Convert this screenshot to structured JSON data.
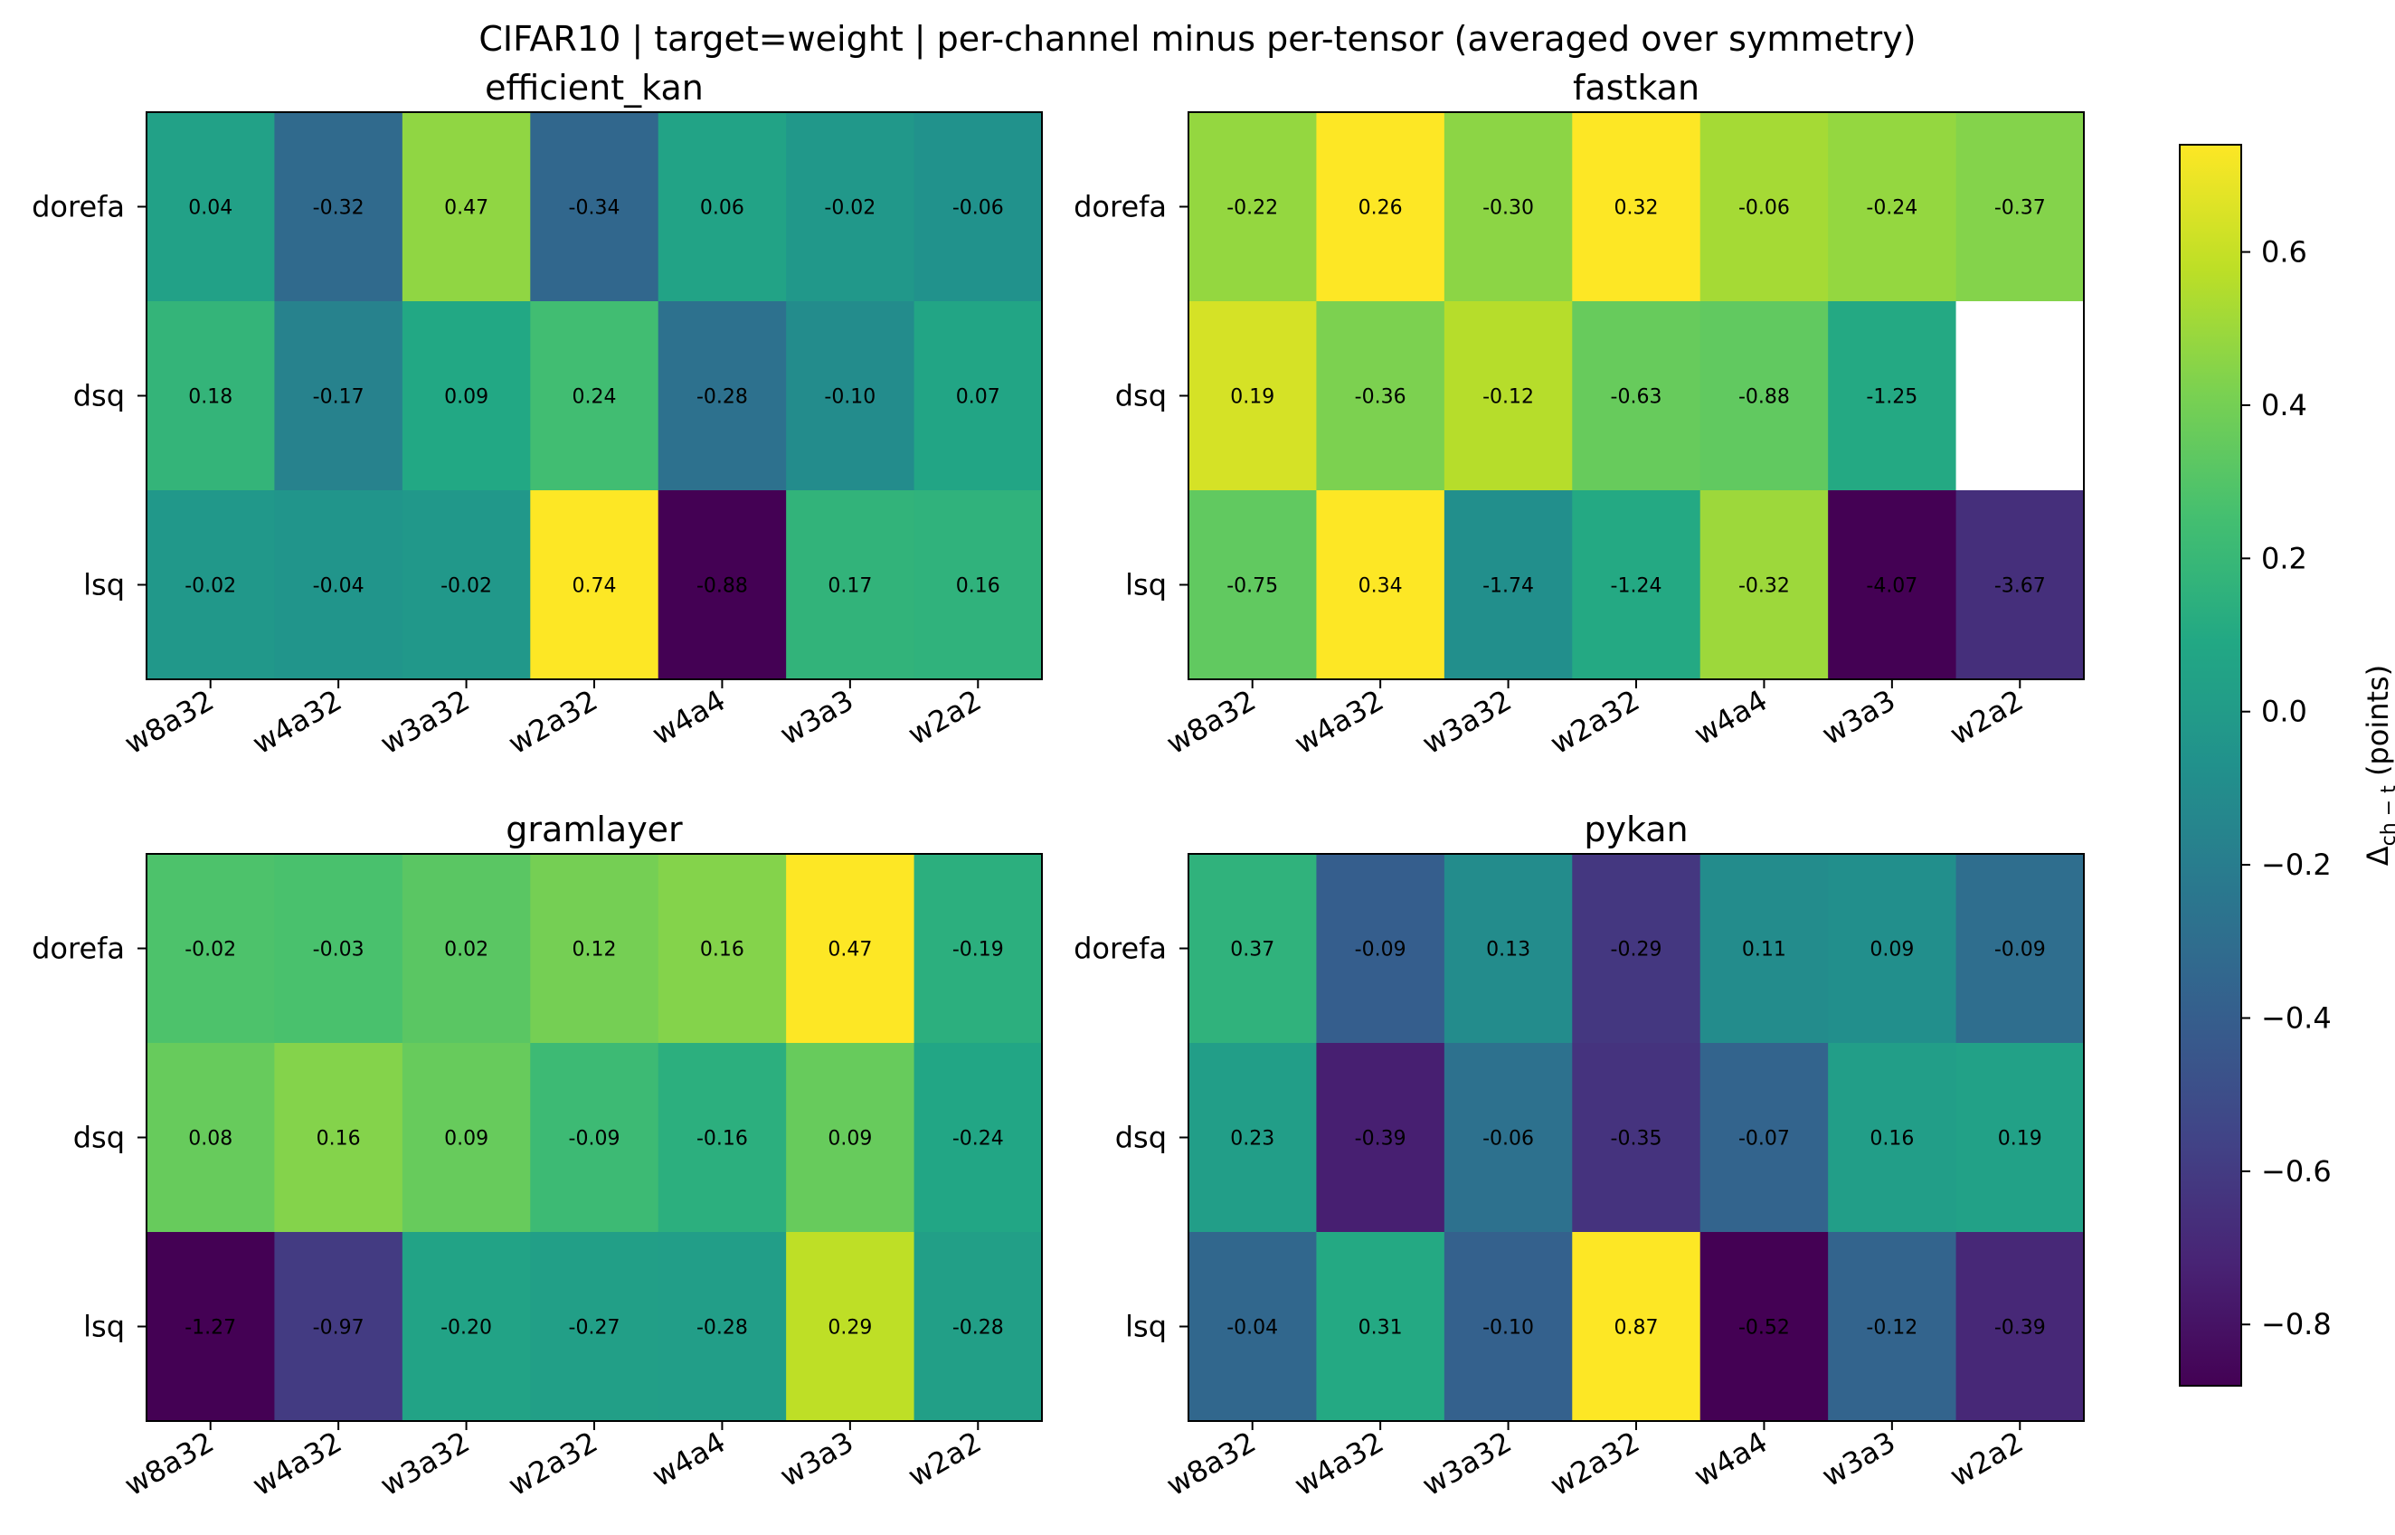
{
  "chart_data": {
    "type": "heatmap",
    "title": "CIFAR10 | target=weight | per-channel minus per-tensor (averaged over symmetry)",
    "colormap": "viridis",
    "colorbar": {
      "label": "Δ_ch−t (points)",
      "label_main": "Δ",
      "label_sub": "ch − t",
      "label_suffix": " (points)",
      "min": -0.88,
      "max": 0.74,
      "ticks": [
        -0.8,
        -0.6,
        -0.4,
        -0.2,
        0.0,
        0.2,
        0.4,
        0.6
      ],
      "tick_labels": [
        "−0.8",
        "−0.6",
        "−0.4",
        "−0.2",
        "0.0",
        "0.2",
        "0.4",
        "0.6"
      ]
    },
    "panels": [
      {
        "name": "efficient_kan",
        "title": "efficient_kan",
        "rows": [
          "dorefa",
          "dsq",
          "lsq"
        ],
        "columns": [
          "w8a32",
          "w4a32",
          "w3a32",
          "w2a32",
          "w4a4",
          "w3a3",
          "w2a2"
        ],
        "values": [
          [
            0.04,
            -0.32,
            0.47,
            -0.34,
            0.06,
            -0.02,
            -0.06
          ],
          [
            0.18,
            -0.17,
            0.09,
            0.24,
            -0.28,
            -0.1,
            0.07
          ],
          [
            -0.02,
            -0.04,
            -0.02,
            0.74,
            -0.88,
            0.17,
            0.16
          ]
        ],
        "labels": [
          [
            "0.04",
            "-0.32",
            "0.47",
            "-0.34",
            "0.06",
            "-0.02",
            "-0.06"
          ],
          [
            "0.18",
            "-0.17",
            "0.09",
            "0.24",
            "-0.28",
            "-0.10",
            "0.07"
          ],
          [
            "-0.02",
            "-0.04",
            "-0.02",
            "0.74",
            "-0.88",
            "0.17",
            "0.16"
          ]
        ]
      },
      {
        "name": "fastkan",
        "title": "fastkan",
        "rows": [
          "dorefa",
          "dsq",
          "lsq"
        ],
        "columns": [
          "w8a32",
          "w4a32",
          "w3a32",
          "w2a32",
          "w4a4",
          "w3a3",
          "w2a2"
        ],
        "values": [
          [
            -0.22,
            0.26,
            -0.3,
            0.32,
            -0.06,
            -0.24,
            -0.37
          ],
          [
            0.19,
            -0.36,
            -0.12,
            -0.63,
            -0.88,
            -1.25,
            null
          ],
          [
            -0.75,
            0.34,
            -1.74,
            -1.24,
            -0.32,
            -4.07,
            -3.67
          ]
        ],
        "labels": [
          [
            "-0.22",
            "0.26",
            "-0.30",
            "0.32",
            "-0.06",
            "-0.24",
            "-0.37"
          ],
          [
            "0.19",
            "-0.36",
            "-0.12",
            "-0.63",
            "-0.88",
            "-1.25",
            ""
          ],
          [
            "-0.75",
            "0.34",
            "-1.74",
            "-1.24",
            "-0.32",
            "-4.07",
            "-3.67"
          ]
        ],
        "approx_color_levels": [
          [
            0.48,
            0.74,
            0.46,
            0.74,
            0.52,
            0.48,
            0.44
          ],
          [
            0.64,
            0.42,
            0.56,
            0.36,
            0.34,
            0.1,
            null
          ],
          [
            0.34,
            0.74,
            -0.08,
            0.1,
            0.5,
            -0.88,
            -0.66
          ]
        ]
      },
      {
        "name": "gramlayer",
        "title": "gramlayer",
        "rows": [
          "dorefa",
          "dsq",
          "lsq"
        ],
        "columns": [
          "w8a32",
          "w4a32",
          "w3a32",
          "w2a32",
          "w4a4",
          "w3a3",
          "w2a2"
        ],
        "values": [
          [
            -0.02,
            -0.03,
            0.02,
            0.12,
            0.16,
            0.47,
            -0.19
          ],
          [
            0.08,
            0.16,
            0.09,
            -0.09,
            -0.16,
            0.09,
            -0.24
          ],
          [
            -1.27,
            -0.97,
            -0.2,
            -0.27,
            -0.28,
            0.29,
            -0.28
          ]
        ],
        "labels": [
          [
            "-0.02",
            "-0.03",
            "0.02",
            "0.12",
            "0.16",
            "0.47",
            "-0.19"
          ],
          [
            "0.08",
            "0.16",
            "0.09",
            "-0.09",
            "-0.16",
            "0.09",
            "-0.24"
          ],
          [
            "-1.27",
            "-0.97",
            "-0.20",
            "-0.27",
            "-0.28",
            "0.29",
            "-0.28"
          ]
        ],
        "approx_color_levels": [
          [
            0.28,
            0.27,
            0.32,
            0.4,
            0.44,
            0.74,
            0.14
          ],
          [
            0.36,
            0.44,
            0.36,
            0.22,
            0.14,
            0.36,
            0.08
          ],
          [
            -0.88,
            -0.6,
            0.06,
            0.03,
            0.02,
            0.58,
            0.03
          ]
        ]
      },
      {
        "name": "pykan",
        "title": "pykan",
        "rows": [
          "dorefa",
          "dsq",
          "lsq"
        ],
        "columns": [
          "w8a32",
          "w4a32",
          "w3a32",
          "w2a32",
          "w4a4",
          "w3a3",
          "w2a2"
        ],
        "values": [
          [
            0.37,
            -0.09,
            0.13,
            -0.29,
            0.11,
            0.09,
            -0.09
          ],
          [
            0.23,
            -0.39,
            -0.06,
            -0.35,
            -0.07,
            0.16,
            0.19
          ],
          [
            -0.04,
            0.31,
            -0.1,
            0.87,
            -0.52,
            -0.12,
            -0.39
          ]
        ],
        "labels": [
          [
            "0.37",
            "-0.09",
            "0.13",
            "-0.29",
            "0.11",
            "0.09",
            "-0.09"
          ],
          [
            "0.23",
            "-0.39",
            "-0.06",
            "-0.35",
            "-0.07",
            "0.16",
            "0.19"
          ],
          [
            "-0.04",
            "0.31",
            "-0.10",
            "0.87",
            "-0.52",
            "-0.12",
            "-0.39"
          ]
        ],
        "approx_color_levels": [
          [
            0.16,
            -0.4,
            -0.1,
            -0.62,
            -0.1,
            -0.08,
            -0.3
          ],
          [
            0.02,
            -0.74,
            -0.28,
            -0.64,
            -0.36,
            0.02,
            0.04
          ],
          [
            -0.34,
            0.1,
            -0.38,
            0.74,
            -0.88,
            -0.36,
            -0.7
          ]
        ]
      }
    ]
  }
}
